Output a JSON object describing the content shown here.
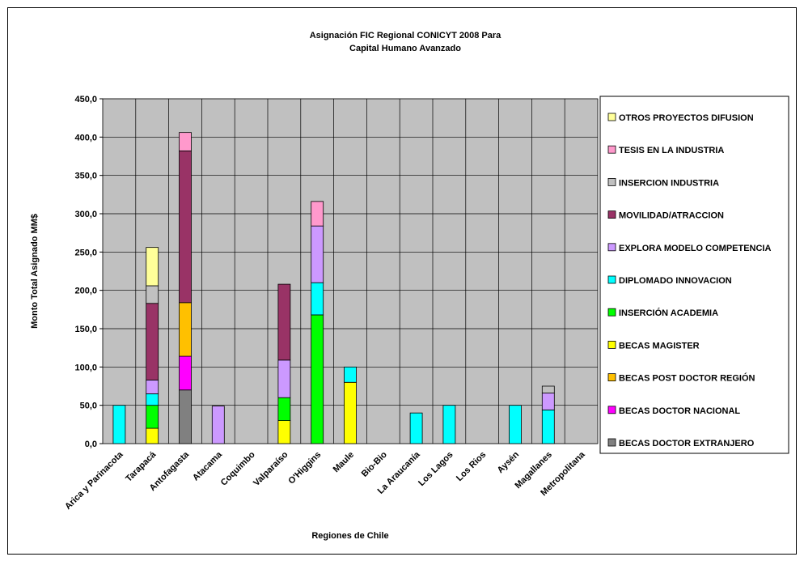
{
  "chart_data": {
    "type": "bar",
    "stacked": true,
    "title_lines": [
      "Asignación FIC Regional CONICYT 2008 Para",
      "Capital Humano Avanzado"
    ],
    "xlabel": "Regiones de Chile",
    "ylabel": "Monto Total Asignado MM$",
    "ylim": [
      0,
      450
    ],
    "yticks": [
      "0,0",
      "50,0",
      "100,0",
      "150,0",
      "200,0",
      "250,0",
      "300,0",
      "350,0",
      "400,0",
      "450,0"
    ],
    "grid": true,
    "legend_position": "right",
    "categories": [
      "Arica y Parinacota",
      "Tarapacá",
      "Antofagasta",
      "Atacama",
      "Coquimbo",
      "Valparaíso",
      "O'Higgins",
      "Maule",
      "Bio-Bio",
      "La Araucanía",
      "Los Lagos",
      "Los Rios",
      "Aysén",
      "Magallanes",
      "Metropolitana"
    ],
    "series": [
      {
        "name": "BECAS DOCTOR EXTRANJERO",
        "color": "#808080",
        "values": [
          0,
          0,
          70,
          0,
          0,
          0,
          0,
          0,
          0,
          0,
          0,
          0,
          0,
          0,
          0
        ]
      },
      {
        "name": "BECAS DOCTOR NACIONAL",
        "color": "#ff00ff",
        "values": [
          0,
          0,
          44,
          0,
          0,
          0,
          0,
          0,
          0,
          0,
          0,
          0,
          0,
          0,
          0
        ]
      },
      {
        "name": "BECAS POST DOCTOR REGIÓN",
        "color": "#ffc000",
        "values": [
          0,
          0,
          70,
          0,
          0,
          0,
          0,
          0,
          0,
          0,
          0,
          0,
          0,
          0,
          0
        ]
      },
      {
        "name": "BECAS MAGISTER",
        "color": "#ffff00",
        "values": [
          0,
          20,
          0,
          0,
          0,
          30,
          0,
          80,
          0,
          0,
          0,
          0,
          0,
          0,
          0
        ]
      },
      {
        "name": "INSERCIÓN ACADEMIA",
        "color": "#00ff00",
        "values": [
          0,
          30,
          0,
          0,
          0,
          30,
          168,
          0,
          0,
          0,
          0,
          0,
          0,
          0,
          0
        ]
      },
      {
        "name": "DIPLOMADO INNOVACION",
        "color": "#00ffff",
        "values": [
          50,
          15,
          0,
          0,
          0,
          0,
          42,
          20,
          0,
          40,
          50,
          0,
          50,
          44,
          0
        ]
      },
      {
        "name": "EXPLORA  MODELO COMPETENCIA",
        "color": "#cc99ff",
        "values": [
          0,
          18,
          0,
          49,
          0,
          49,
          74,
          0,
          0,
          0,
          0,
          0,
          0,
          22,
          0
        ]
      },
      {
        "name": "MOVILIDAD/ATRACCION",
        "color": "#993366",
        "values": [
          0,
          100,
          198,
          0,
          0,
          99,
          0,
          0,
          0,
          0,
          0,
          0,
          0,
          0,
          0
        ]
      },
      {
        "name": "INSERCION INDUSTRIA",
        "color": "#c0c0c0",
        "values": [
          0,
          23,
          0,
          0,
          0,
          0,
          0,
          0,
          0,
          0,
          0,
          0,
          0,
          9,
          0
        ]
      },
      {
        "name": "TESIS EN LA INDUSTRIA",
        "color": "#ff99cc",
        "values": [
          0,
          0,
          24,
          0,
          0,
          0,
          32,
          0,
          0,
          0,
          0,
          0,
          0,
          0,
          0
        ]
      },
      {
        "name": "OTROS PROYECTOS DIFUSION",
        "color": "#ffff99",
        "values": [
          0,
          50,
          0,
          0,
          0,
          0,
          0,
          0,
          0,
          0,
          0,
          0,
          0,
          0,
          0
        ]
      }
    ],
    "plot_background": "#c0c0c0"
  }
}
